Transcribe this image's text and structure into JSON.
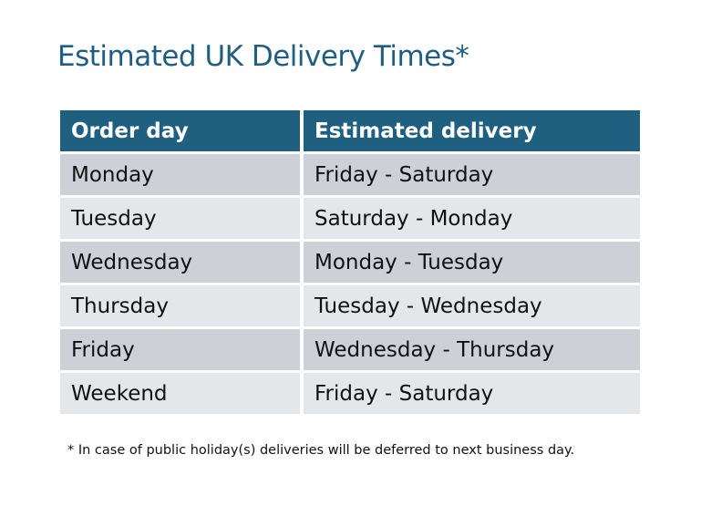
{
  "title": "Estimated UK Delivery Times*",
  "table": {
    "headers": [
      "Order day",
      "Estimated delivery"
    ],
    "rows": [
      [
        "Monday",
        "Friday - Saturday"
      ],
      [
        "Tuesday",
        "Saturday - Monday"
      ],
      [
        "Wednesday",
        "Monday - Tuesday"
      ],
      [
        "Thursday",
        "Tuesday - Wednesday"
      ],
      [
        "Friday",
        "Wednesday - Thursday"
      ],
      [
        "Weekend",
        "Friday - Saturday"
      ]
    ]
  },
  "footnote": "* In case of public holiday(s) deliveries will be deferred to next business day.",
  "colors": {
    "header": "#1f5f80",
    "row_dark": "#cdd1d7",
    "row_light": "#e4e7ea",
    "title": "#1f5e80"
  }
}
